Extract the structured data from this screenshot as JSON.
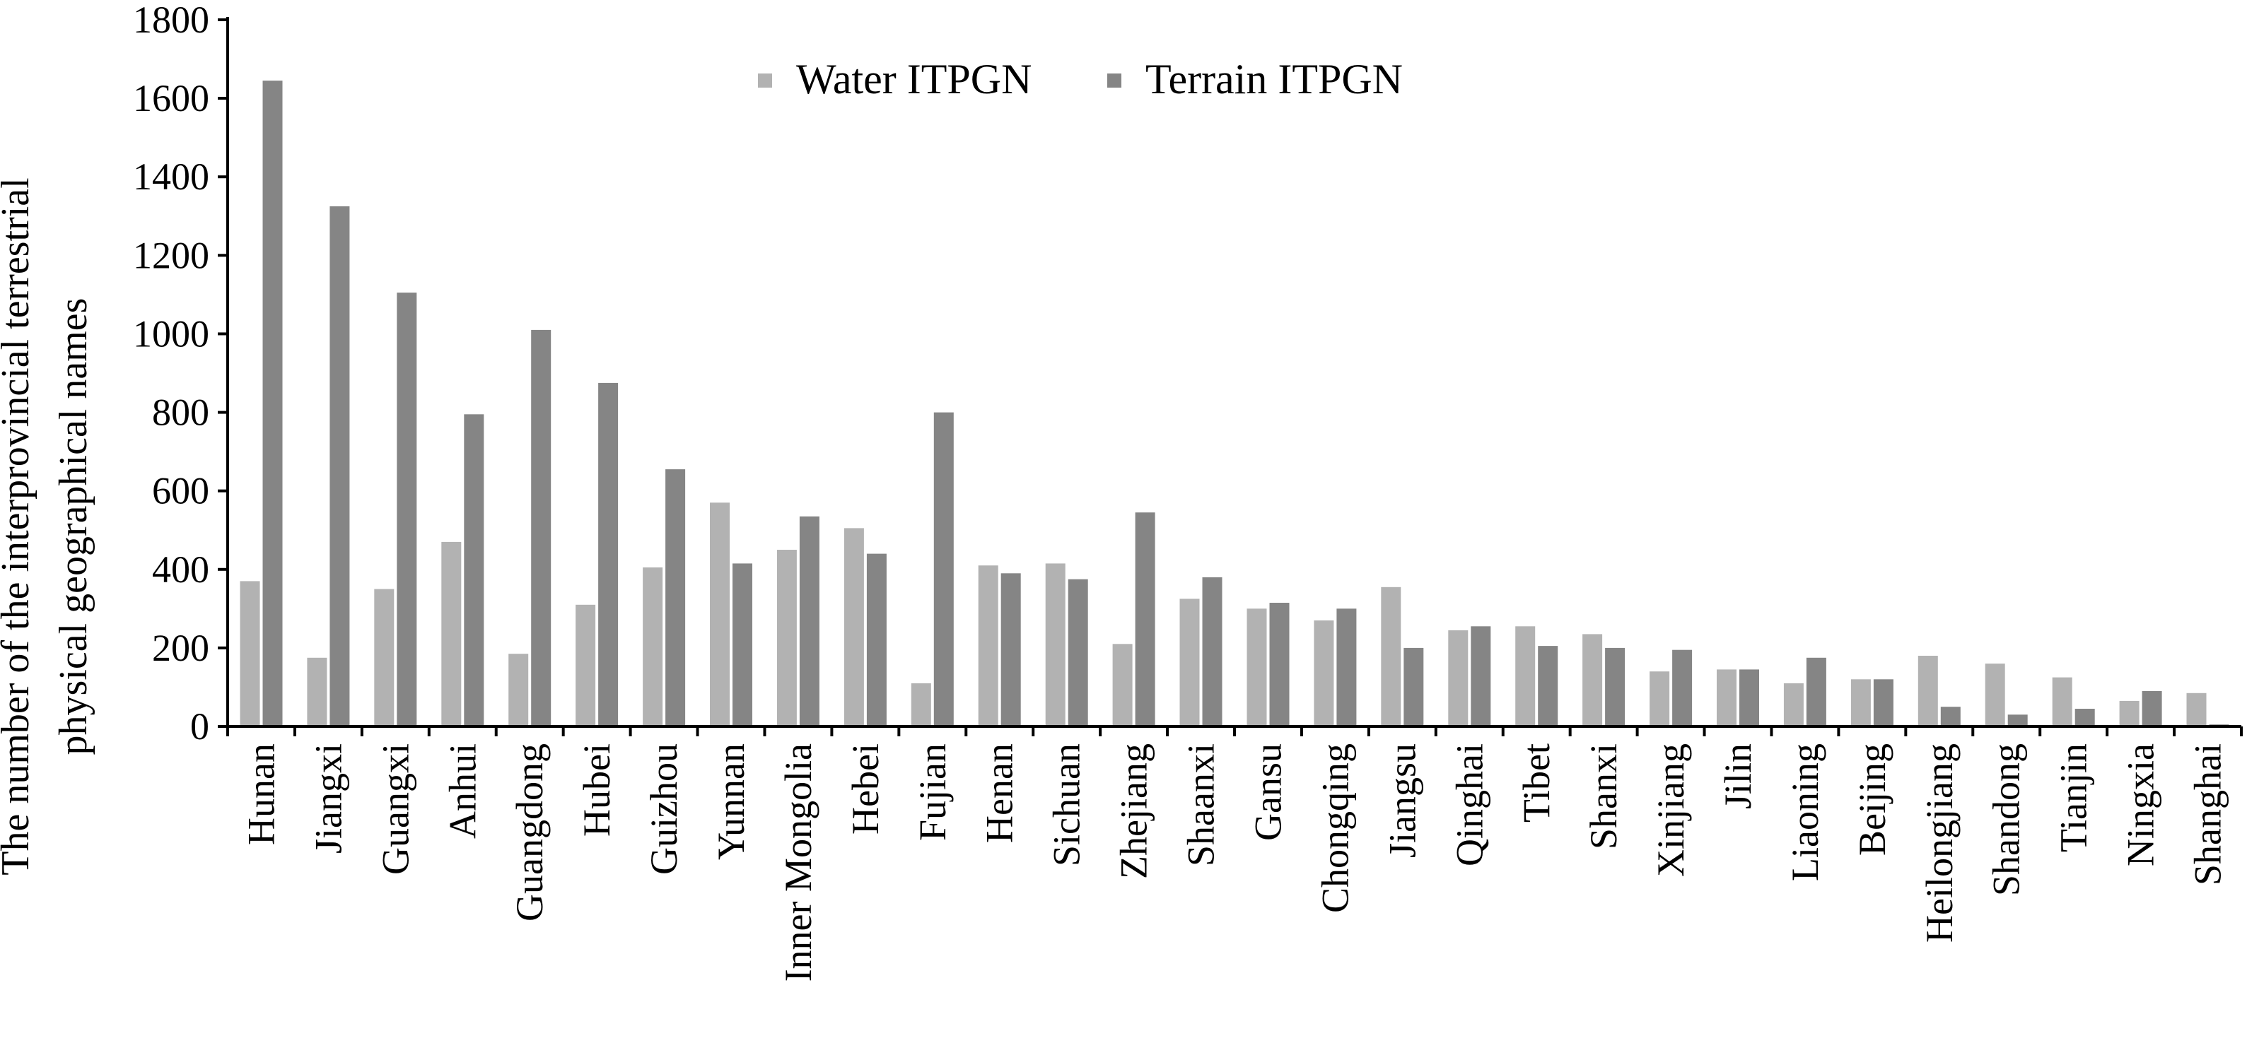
{
  "chart_data": {
    "type": "bar",
    "ylabel": [
      "The number of  the interprovincial terrestrial",
      "physical geographical names"
    ],
    "xlabel": "",
    "ylim": [
      0,
      1800
    ],
    "yticks": [
      0,
      200,
      400,
      600,
      800,
      1000,
      1200,
      1400,
      1600,
      1800
    ],
    "grid": false,
    "legend_position": "top-center",
    "categories": [
      "Hunan",
      "Jiangxi",
      "Guangxi",
      "Anhui",
      "Guangdong",
      "Hubei",
      "Guizhou",
      "Yunnan",
      "Inner Mongolia",
      "Hebei",
      "Fujian",
      "Henan",
      "Sichuan",
      "Zhejiang",
      "Shaanxi",
      "Gansu",
      "Chongqing",
      "Jiangsu",
      "Qinghai",
      "Tibet",
      "Shanxi",
      "Xinjiang",
      "Jilin",
      "Liaoning",
      "Beijing",
      "Heilongjiang",
      "Shandong",
      "Tianjin",
      "Ningxia",
      "Shanghai"
    ],
    "series": [
      {
        "name": "Water ITPGN",
        "color": "#b2b2b2",
        "values": [
          370,
          175,
          350,
          470,
          185,
          310,
          405,
          570,
          450,
          505,
          110,
          410,
          415,
          210,
          325,
          300,
          270,
          355,
          245,
          255,
          235,
          140,
          145,
          110,
          120,
          180,
          160,
          125,
          65,
          85
        ]
      },
      {
        "name": "Terrain ITPGN",
        "color": "#858585",
        "values": [
          1645,
          1325,
          1105,
          795,
          1010,
          875,
          655,
          415,
          535,
          440,
          800,
          390,
          375,
          545,
          380,
          315,
          300,
          200,
          255,
          205,
          200,
          195,
          145,
          175,
          120,
          50,
          30,
          45,
          90,
          5
        ]
      }
    ]
  }
}
